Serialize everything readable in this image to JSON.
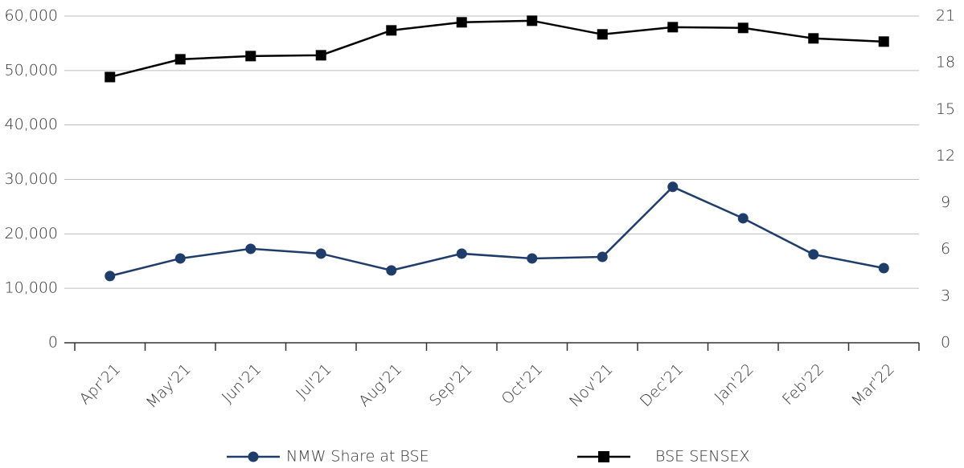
{
  "chart_data": {
    "type": "line",
    "categories": [
      "Apr'21",
      "May'21",
      "Jun'21",
      "Jul'21",
      "Aug'21",
      "Sep'21",
      "Oct'21",
      "Nov'21",
      "Dec'21",
      "Jan'22",
      "Feb'22",
      "Mar'22"
    ],
    "series": [
      {
        "name": "NMW Share at BSE",
        "color": "#1f3d6b",
        "marker": "circle",
        "axis": "y2",
        "values": [
          4.29,
          5.42,
          6.04,
          5.73,
          4.65,
          5.73,
          5.42,
          5.52,
          10.02,
          8.0,
          5.68,
          4.8
        ]
      },
      {
        "name": "BSE SENSEX",
        "color": "#000000",
        "marker": "square",
        "values": [
          48800,
          52060,
          52650,
          52800,
          57370,
          58850,
          59140,
          56640,
          57960,
          57820,
          55900,
          55310
        ]
      }
    ],
    "ylim": [
      0,
      60000
    ],
    "yticks": [
      0,
      {
        "value": 10000,
        "label": "10,000"
      },
      {
        "value": 20000,
        "label": "20,000"
      },
      {
        "value": 30000,
        "label": "30,000"
      },
      {
        "value": 40000,
        "label": "40,000"
      },
      {
        "value": 50000,
        "label": "50,000"
      },
      {
        "value": 60000,
        "label": "60,000"
      }
    ],
    "y2lim": [
      0,
      21
    ],
    "y2ticks": [
      0,
      3,
      6,
      9,
      12,
      15,
      18,
      21
    ],
    "grid": true
  }
}
